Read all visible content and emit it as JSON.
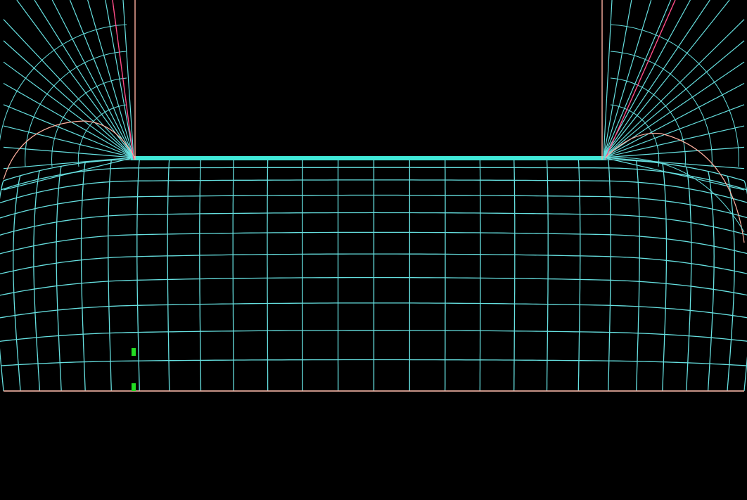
{
  "view": {
    "background_color": "#000000"
  },
  "mesh": {
    "line_color": "#66e0e0",
    "electrode_edge_color": "#40e8d8",
    "boundary_color": "#ffb0a0",
    "bevel_color": "#ff4d88",
    "marker_color": "#22dd22",
    "interior_columns": 26,
    "interior_rows": 11,
    "fan_lines_per_corner": 16
  },
  "markers": {
    "count": 2
  }
}
